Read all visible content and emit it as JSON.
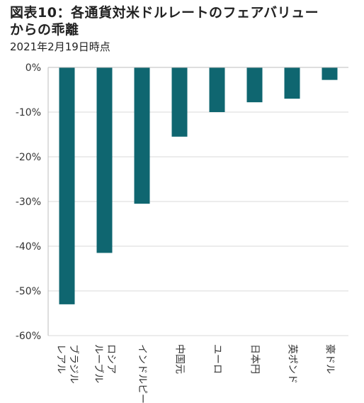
{
  "title_lines": [
    "図表10：各通貨対米ドルレートのフェアバリュー",
    "からの乖離"
  ],
  "subtitle": "2021年2月19日時点",
  "chart_data": {
    "type": "bar",
    "title": "図表10：各通貨対米ドルレートのフェアバリューからの乖離",
    "subtitle": "2021年2月19日時点",
    "categories": [
      [
        "ブラジル",
        "レアル"
      ],
      [
        "ロシア",
        "ルーブル"
      ],
      [
        "インドルピー"
      ],
      [
        "中国元"
      ],
      [
        "ユーロ"
      ],
      [
        "日本円"
      ],
      [
        "英ポンド"
      ],
      [
        "豪ドル"
      ]
    ],
    "values": [
      -53.0,
      -41.5,
      -30.5,
      -15.5,
      -10.0,
      -7.8,
      -7.0,
      -2.8
    ],
    "ylim": [
      -60,
      0
    ],
    "yticks": [
      0,
      -10,
      -20,
      -30,
      -40,
      -50,
      -60
    ],
    "ytick_labels": [
      "0%",
      "-10%",
      "-20%",
      "-30%",
      "-40%",
      "-50%",
      "-60%"
    ],
    "xlabel": "",
    "ylabel": "",
    "grid": true,
    "bar_color": "#0f6670",
    "grid_color": "#d9d9d9",
    "axis_color": "#bdbdbd"
  }
}
